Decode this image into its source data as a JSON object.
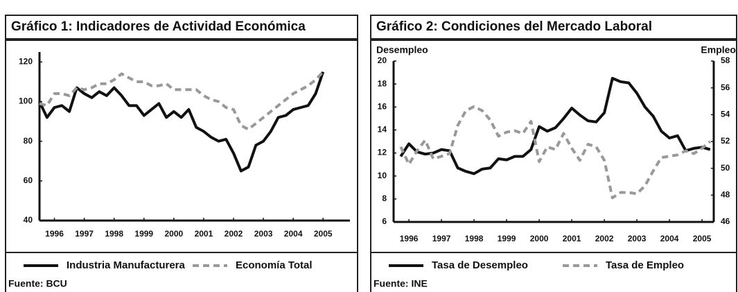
{
  "chart_data": [
    {
      "type": "line",
      "title": "Gráfico 1: Indicadores de Actividad Económica",
      "source": "Fuente: BCU",
      "x": [
        1995.5,
        1995.75,
        1996,
        1996.25,
        1996.5,
        1996.75,
        1997,
        1997.25,
        1997.5,
        1997.75,
        1998,
        1998.25,
        1998.5,
        1998.75,
        1999,
        1999.25,
        1999.5,
        1999.75,
        2000,
        2000.25,
        2000.5,
        2000.75,
        2001,
        2001.25,
        2001.5,
        2001.75,
        2002,
        2002.25,
        2002.5,
        2002.75,
        2003,
        2003.25,
        2003.5,
        2003.75,
        2004,
        2004.25,
        2004.5,
        2004.75,
        2005
      ],
      "series": [
        {
          "name": "Industria Manufacturera",
          "color": "#111111",
          "dashed": false,
          "values": [
            100,
            92,
            97,
            98,
            95,
            107,
            104,
            102,
            105,
            103,
            107,
            103,
            98,
            98,
            93,
            96,
            99,
            92,
            95,
            92,
            96,
            87,
            85,
            82,
            80,
            81,
            74,
            65,
            67,
            78,
            80,
            85,
            92,
            93,
            96,
            97,
            98,
            104,
            115
          ]
        },
        {
          "name": "Economía Total",
          "color": "#999999",
          "dashed": true,
          "values": [
            99,
            98,
            104,
            104,
            103,
            107,
            106,
            107,
            109,
            109,
            111,
            114,
            112,
            110,
            110,
            108,
            108,
            109,
            106,
            106,
            106,
            106,
            103,
            101,
            100,
            97,
            96,
            88,
            86,
            89,
            92,
            95,
            98,
            101,
            104,
            106,
            108,
            111,
            115
          ]
        }
      ],
      "xlim": [
        1995.5,
        2005.9
      ],
      "xticks": [
        1996,
        1997,
        1998,
        1999,
        2000,
        2001,
        2002,
        2003,
        2004,
        2005
      ],
      "ylim": [
        40,
        125
      ],
      "yticks": [
        40,
        60,
        80,
        100,
        120
      ],
      "grid": false
    },
    {
      "type": "line",
      "title": "Gráfico 2: Condiciones del Mercado Laboral",
      "source": "Fuente: INE",
      "y_label": "Desempleo",
      "y2_label": "Empleo",
      "x": [
        1995.75,
        1996,
        1996.25,
        1996.5,
        1996.75,
        1997,
        1997.25,
        1997.5,
        1997.75,
        1998,
        1998.25,
        1998.5,
        1998.75,
        1999,
        1999.25,
        1999.5,
        1999.75,
        2000,
        2000.25,
        2000.5,
        2000.75,
        2001,
        2001.25,
        2001.5,
        2001.75,
        2002,
        2002.25,
        2002.5,
        2002.75,
        2003,
        2003.25,
        2003.5,
        2003.75,
        2004,
        2004.25,
        2004.5,
        2004.75,
        2005,
        2005.25
      ],
      "series": [
        {
          "name": "Tasa de Desempleo",
          "color": "#111111",
          "dashed": false,
          "axis": "y",
          "values": [
            11.7,
            12.8,
            12.1,
            11.9,
            12.0,
            12.3,
            12.2,
            10.7,
            10.4,
            10.2,
            10.6,
            10.7,
            11.5,
            11.4,
            11.7,
            11.7,
            12.3,
            14.3,
            13.9,
            14.2,
            15.0,
            15.9,
            15.3,
            14.8,
            14.7,
            15.5,
            18.5,
            18.2,
            18.1,
            17.2,
            16.0,
            15.2,
            13.9,
            13.3,
            13.5,
            12.2,
            12.4,
            12.5,
            12.3
          ]
        },
        {
          "name": "Tasa de Empleo",
          "color": "#999999",
          "dashed": true,
          "axis": "y2",
          "values": [
            51.6,
            50.3,
            51.3,
            52.1,
            50.7,
            50.9,
            51.1,
            53.2,
            54.3,
            54.6,
            54.3,
            53.6,
            52.4,
            52.7,
            52.8,
            52.6,
            53.5,
            50.5,
            51.6,
            51.4,
            52.6,
            51.5,
            50.6,
            51.8,
            51.6,
            50.6,
            47.8,
            48.2,
            48.2,
            48.1,
            48.7,
            49.8,
            50.8,
            50.9,
            51.0,
            51.3,
            51.1,
            51.5,
            52.0
          ]
        }
      ],
      "xlim": [
        1995.53,
        2005.36
      ],
      "xticks": [
        1996,
        1997,
        1998,
        1999,
        2000,
        2001,
        2002,
        2003,
        2004,
        2005
      ],
      "ylim": [
        6,
        20
      ],
      "yticks": [
        6,
        8,
        10,
        12,
        14,
        16,
        18,
        20
      ],
      "y2lim": [
        46,
        58
      ],
      "y2ticks": [
        46,
        48,
        50,
        52,
        54,
        56,
        58
      ],
      "grid": false
    }
  ]
}
